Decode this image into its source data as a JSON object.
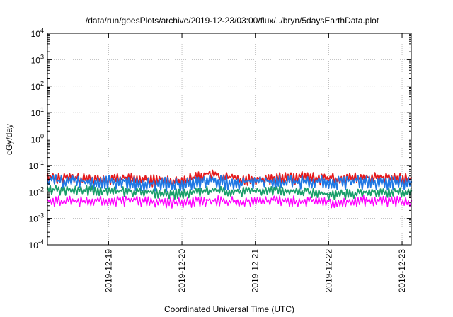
{
  "chart_data": {
    "type": "line",
    "title": "/data/run/goesPlots/archive/2019-12-23/03:00/flux/../bryn/5daysEarthData.plot",
    "xlabel": "Coordinated Universal Time (UTC)",
    "ylabel": "cGy/day",
    "yscale": "log",
    "ylim": [
      0.0001,
      10000
    ],
    "xlim": [
      "2019-12-18T04:00",
      "2019-12-23T03:00"
    ],
    "grid": true,
    "legend": "none",
    "y_ticks": [
      {
        "value": 0.0001,
        "base": "10",
        "exp": "-4"
      },
      {
        "value": 0.001,
        "base": "10",
        "exp": "-3"
      },
      {
        "value": 0.01,
        "base": "10",
        "exp": "-2"
      },
      {
        "value": 0.1,
        "base": "10",
        "exp": "-1"
      },
      {
        "value": 1,
        "base": "10",
        "exp": "0"
      },
      {
        "value": 10,
        "base": "10",
        "exp": "1"
      },
      {
        "value": 100,
        "base": "10",
        "exp": "2"
      },
      {
        "value": 1000,
        "base": "10",
        "exp": "3"
      },
      {
        "value": 10000,
        "base": "10",
        "exp": "4"
      }
    ],
    "x_ticks": [
      {
        "value": "2019-12-19T00:00",
        "label": "2019-12-19"
      },
      {
        "value": "2019-12-20T00:00",
        "label": "2019-12-20"
      },
      {
        "value": "2019-12-21T00:00",
        "label": "2019-12-21"
      },
      {
        "value": "2019-12-22T00:00",
        "label": "2019-12-22"
      },
      {
        "value": "2019-12-23T00:00",
        "label": "2019-12-23"
      }
    ],
    "series": [
      {
        "color": "#e41a1c",
        "x": [
          "2019-12-18T04:00",
          "2019-12-18T16:00",
          "2019-12-19T06:00",
          "2019-12-19T12:00",
          "2019-12-20T00:00",
          "2019-12-20T08:00",
          "2019-12-20T18:00",
          "2019-12-21T06:00",
          "2019-12-21T16:00",
          "2019-12-22T00:00",
          "2019-12-22T12:00",
          "2019-12-23T03:00"
        ],
        "values": [
          0.04,
          0.032,
          0.035,
          0.03,
          0.028,
          0.05,
          0.032,
          0.035,
          0.038,
          0.033,
          0.036,
          0.034
        ]
      },
      {
        "color": "#1f78e4",
        "x": [
          "2019-12-18T04:00",
          "2019-12-18T16:00",
          "2019-12-19T06:00",
          "2019-12-19T12:00",
          "2019-12-20T00:00",
          "2019-12-20T08:00",
          "2019-12-20T18:00",
          "2019-12-21T06:00",
          "2019-12-21T16:00",
          "2019-12-22T00:00",
          "2019-12-22T12:00",
          "2019-12-23T03:00"
        ],
        "values": [
          0.028,
          0.025,
          0.026,
          0.022,
          0.021,
          0.027,
          0.024,
          0.026,
          0.025,
          0.024,
          0.026,
          0.024
        ]
      },
      {
        "color": "#1a9e6a",
        "x": [
          "2019-12-18T04:00",
          "2019-12-18T16:00",
          "2019-12-19T06:00",
          "2019-12-19T12:00",
          "2019-12-20T00:00",
          "2019-12-20T08:00",
          "2019-12-20T18:00",
          "2019-12-21T06:00",
          "2019-12-21T16:00",
          "2019-12-22T00:00",
          "2019-12-22T12:00",
          "2019-12-23T03:00"
        ],
        "values": [
          0.013,
          0.012,
          0.011,
          0.01,
          0.009,
          0.012,
          0.011,
          0.012,
          0.011,
          0.008,
          0.01,
          0.011
        ]
      },
      {
        "color": "#ff00ff",
        "x": [
          "2019-12-18T04:00",
          "2019-12-18T16:00",
          "2019-12-19T06:00",
          "2019-12-19T12:00",
          "2019-12-20T00:00",
          "2019-12-20T08:00",
          "2019-12-20T18:00",
          "2019-12-21T06:00",
          "2019-12-21T16:00",
          "2019-12-22T00:00",
          "2019-12-22T12:00",
          "2019-12-23T03:00"
        ],
        "values": [
          0.005,
          0.0045,
          0.005,
          0.0048,
          0.0042,
          0.005,
          0.0046,
          0.005,
          0.0047,
          0.0043,
          0.005,
          0.0046
        ]
      }
    ]
  }
}
